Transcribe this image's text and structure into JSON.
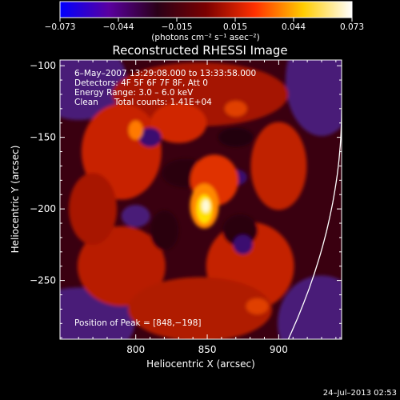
{
  "chart_data": {
    "type": "heatmap",
    "title": "Reconstructed RHESSI Image",
    "xlabel": "Heliocentric X (arcsec)",
    "ylabel": "Heliocentric Y (arcsec)",
    "xlim": [
      747,
      944
    ],
    "ylim": [
      -291,
      -96
    ],
    "x_ticks": [
      {
        "label": "800",
        "value": 800
      },
      {
        "label": "850",
        "value": 850
      },
      {
        "label": "900",
        "value": 900
      }
    ],
    "y_ticks": [
      {
        "label": "−100",
        "value": -100
      },
      {
        "label": "−150",
        "value": -150
      },
      {
        "label": "−200",
        "value": -200
      },
      {
        "label": "−250",
        "value": -250
      }
    ],
    "colorbar": {
      "range": [
        -0.073,
        0.073
      ],
      "tick_labels": [
        "−0.073",
        "−0.044",
        "−0.015",
        "0.015",
        "0.044",
        "0.073"
      ],
      "unit_label": "(photons cm⁻² s⁻¹ asec⁻²)",
      "colormap": [
        "#0000ff",
        "#5a00a0",
        "#2a0018",
        "#7a0000",
        "#ff3000",
        "#ffcc00",
        "#ffffff"
      ]
    },
    "annotations": [
      "6–May–2007 13:29:08.000 to 13:33:58.000",
      "Detectors: 4F 5F 6F 7F 8F, Att 0",
      "Energy Range: 3.0 – 6.0 keV",
      "Clean      Total counts: 1.41E+04"
    ],
    "peak_label": "Position of Peak = [848,−198]",
    "peak": {
      "x": 848,
      "y": -198
    },
    "footer": "24–Jul–2013 02:53"
  }
}
